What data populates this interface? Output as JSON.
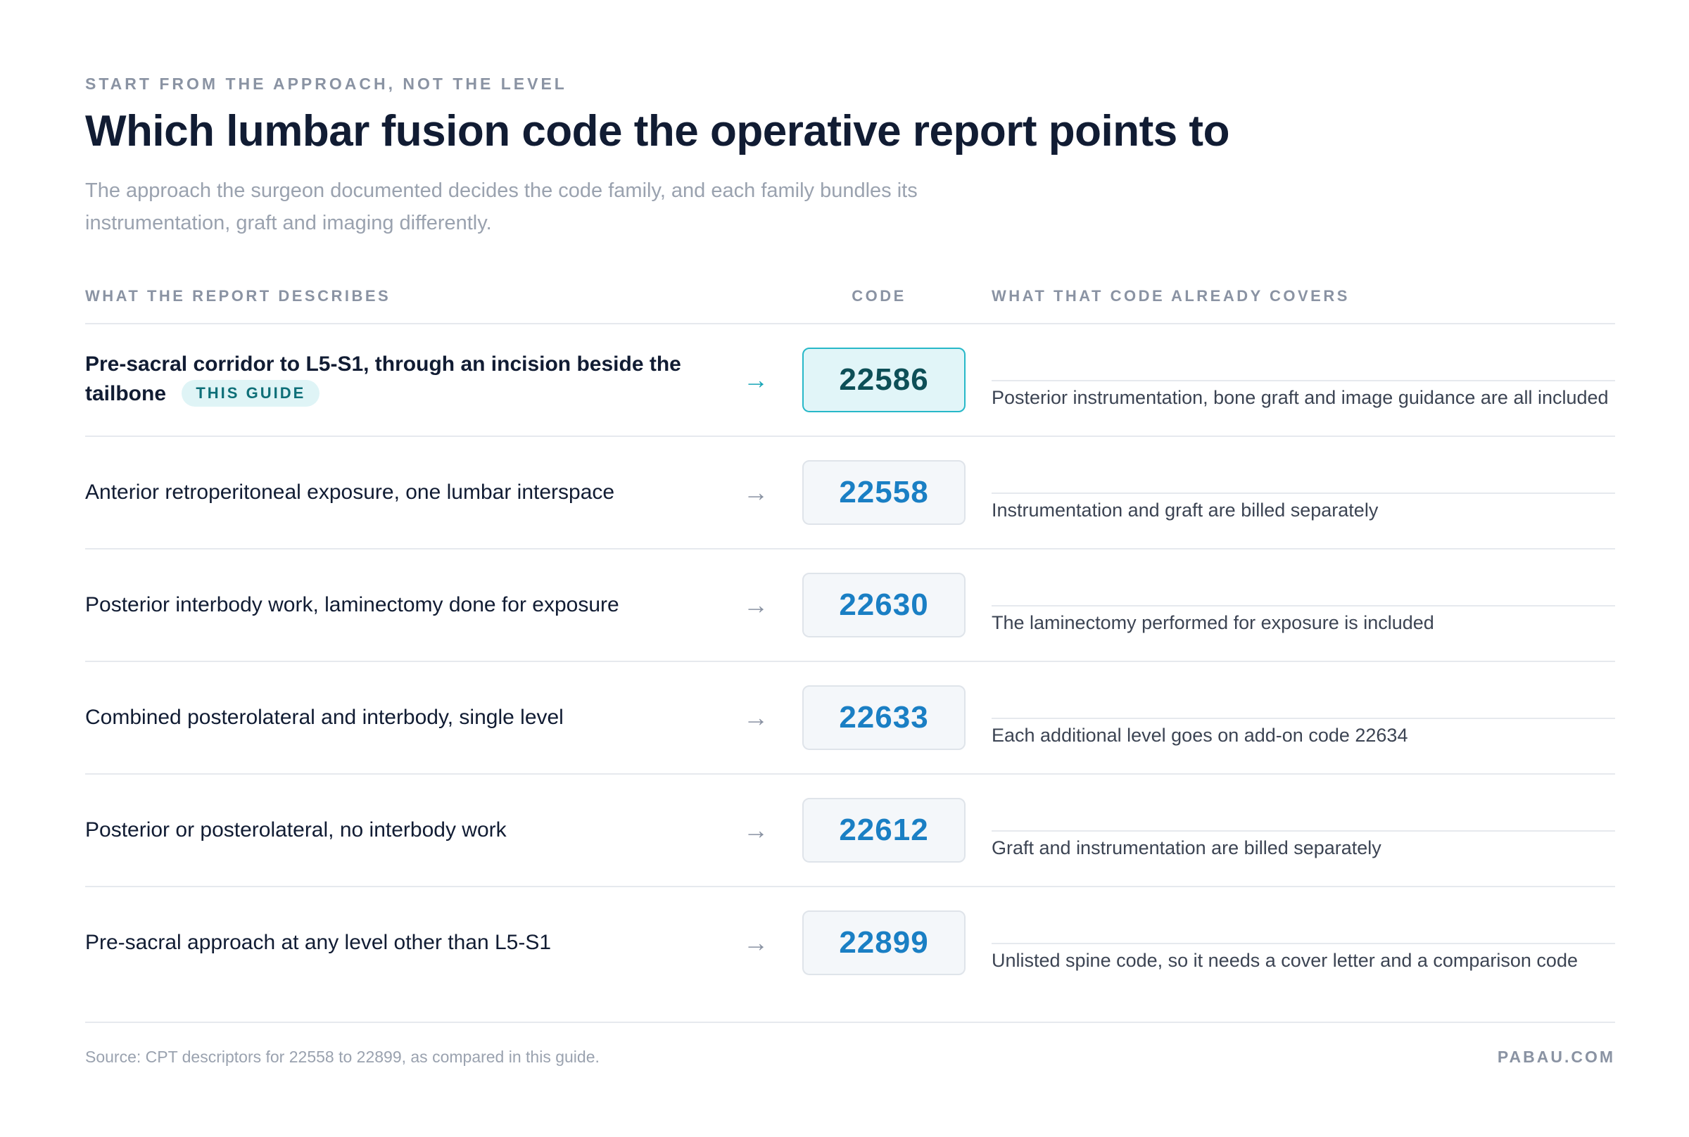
{
  "header": {
    "eyebrow": "START FROM THE APPROACH, NOT THE LEVEL",
    "title": "Which lumbar fusion code the operative report points to",
    "subtitle": "The approach the surgeon documented decides the code family, and each family bundles its instrumentation, graft and imaging differently."
  },
  "table": {
    "columns": {
      "describes": "WHAT THE REPORT DESCRIBES",
      "code": "CODE",
      "covers": "WHAT THAT CODE ALREADY COVERS"
    },
    "arrow_glyph": "→",
    "rows": [
      {
        "description": "Pre-sacral corridor to L5-S1, through an incision beside the tailbone",
        "badge": "THIS GUIDE",
        "code": "22586",
        "covers": "Posterior instrumentation, bone graft and image guidance are all included"
      },
      {
        "description": "Anterior retroperitoneal exposure, one lumbar interspace",
        "code": "22558",
        "covers": "Instrumentation and graft are billed separately"
      },
      {
        "description": "Posterior interbody work, laminectomy done for exposure",
        "code": "22630",
        "covers": "The laminectomy performed for exposure is included"
      },
      {
        "description": "Combined posterolateral and interbody, single level",
        "code": "22633",
        "covers": "Each additional level goes on add-on code 22634"
      },
      {
        "description": "Posterior or posterolateral, no interbody work",
        "code": "22612",
        "covers": "Graft and instrumentation are billed separately"
      },
      {
        "description": "Pre-sacral approach at any level other than L5-S1",
        "code": "22899",
        "covers": "Unlisted spine code, so it needs a cover letter and a comparison code"
      }
    ]
  },
  "footer": {
    "source": "Source: CPT descriptors for 22558 to 22899, as compared in this guide.",
    "brand": "PABAU.COM"
  },
  "colors": {
    "accent": "#1a7fc4",
    "featured_accent": "#27b8c8",
    "text": "#111c33",
    "muted": "#8a93a3"
  }
}
